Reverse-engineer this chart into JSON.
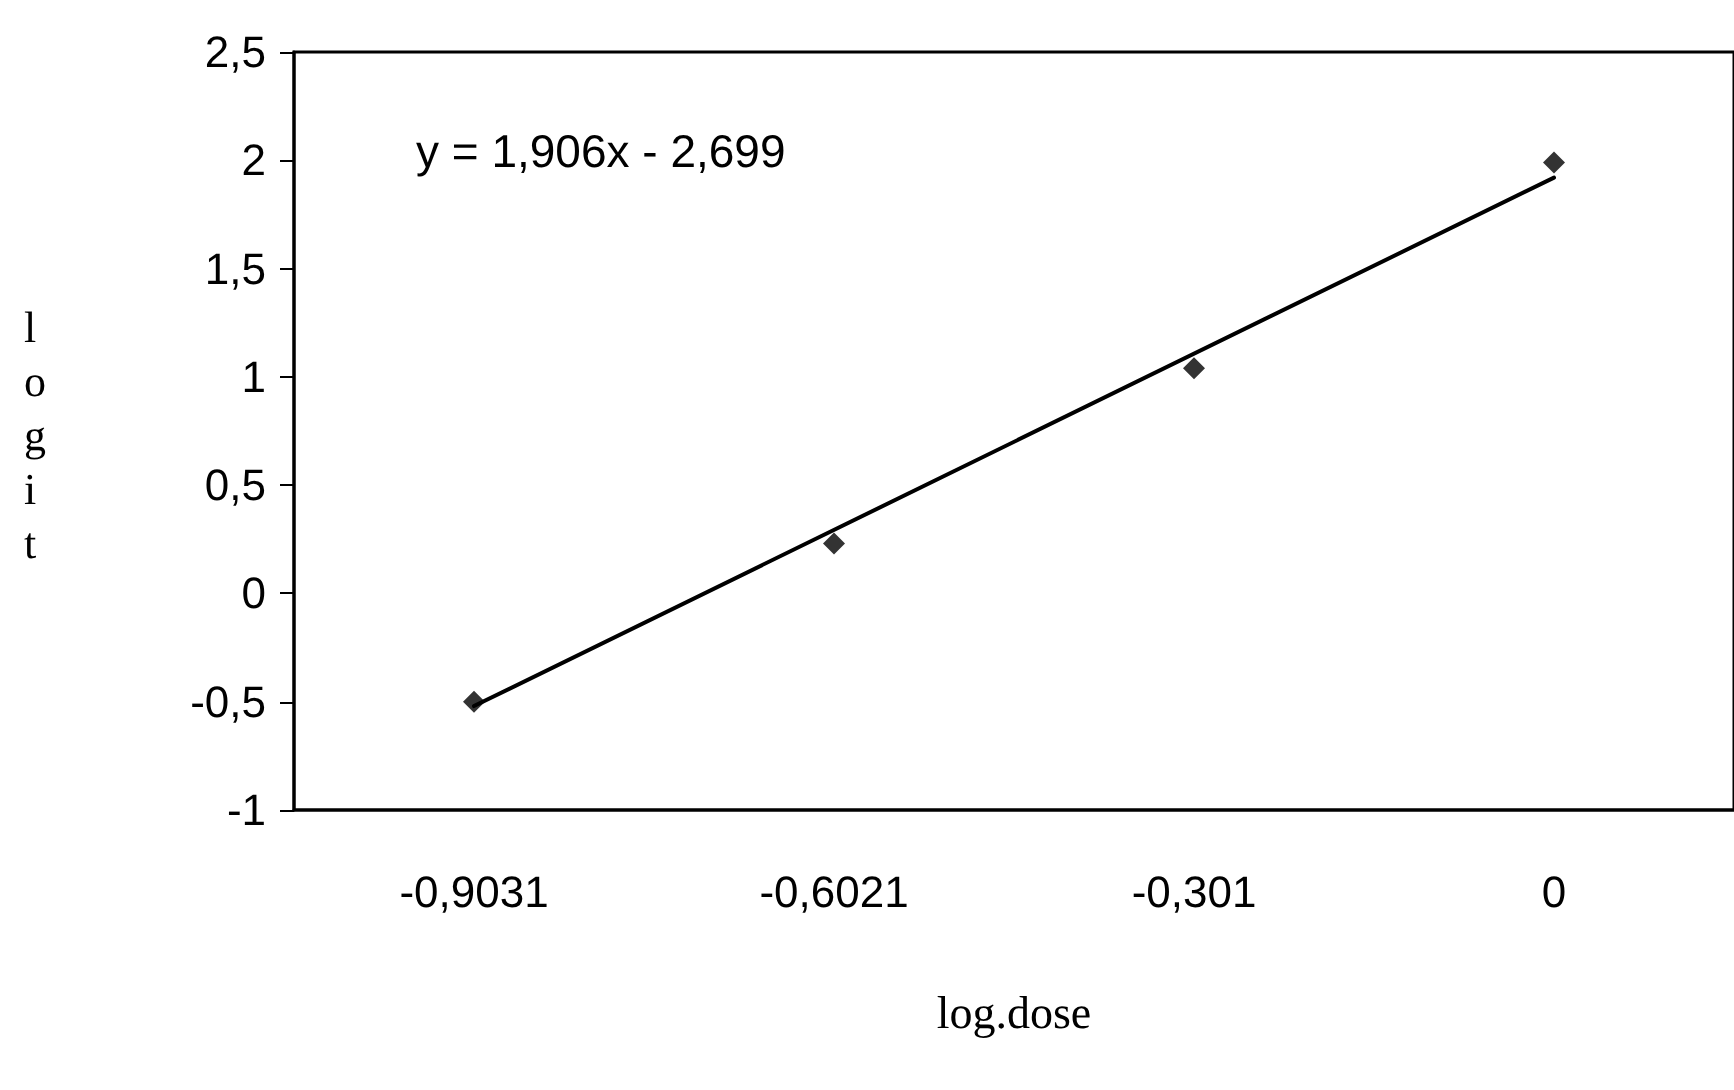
{
  "chart_data": {
    "type": "scatter",
    "xlabel": "log.dose",
    "ylabel": "logit",
    "categories": [
      "-0,9031",
      "-0,6021",
      "-0,301",
      "0"
    ],
    "series": [
      {
        "color": "#000000",
        "marker": "diamond",
        "values": [
          -0.5,
          0.23,
          1.04,
          1.99
        ]
      },
      {
        "type": "line",
        "color": "#000000",
        "marker": "none",
        "x": [
          "-0,9031",
          "0"
        ],
        "values": [
          -0.52,
          1.92
        ]
      }
    ],
    "ylim": [
      -1,
      2.5
    ],
    "yticks": [
      -1,
      {
        "value": -0.5,
        "label": "-0,5"
      },
      0,
      {
        "value": 0.5,
        "label": "0,5"
      },
      1,
      {
        "value": 1.5,
        "label": "1,5"
      },
      2,
      {
        "value": 2.5,
        "label": "2,5"
      }
    ],
    "annotations": [
      "y = 1,906x - 2,699"
    ],
    "grid": false
  }
}
